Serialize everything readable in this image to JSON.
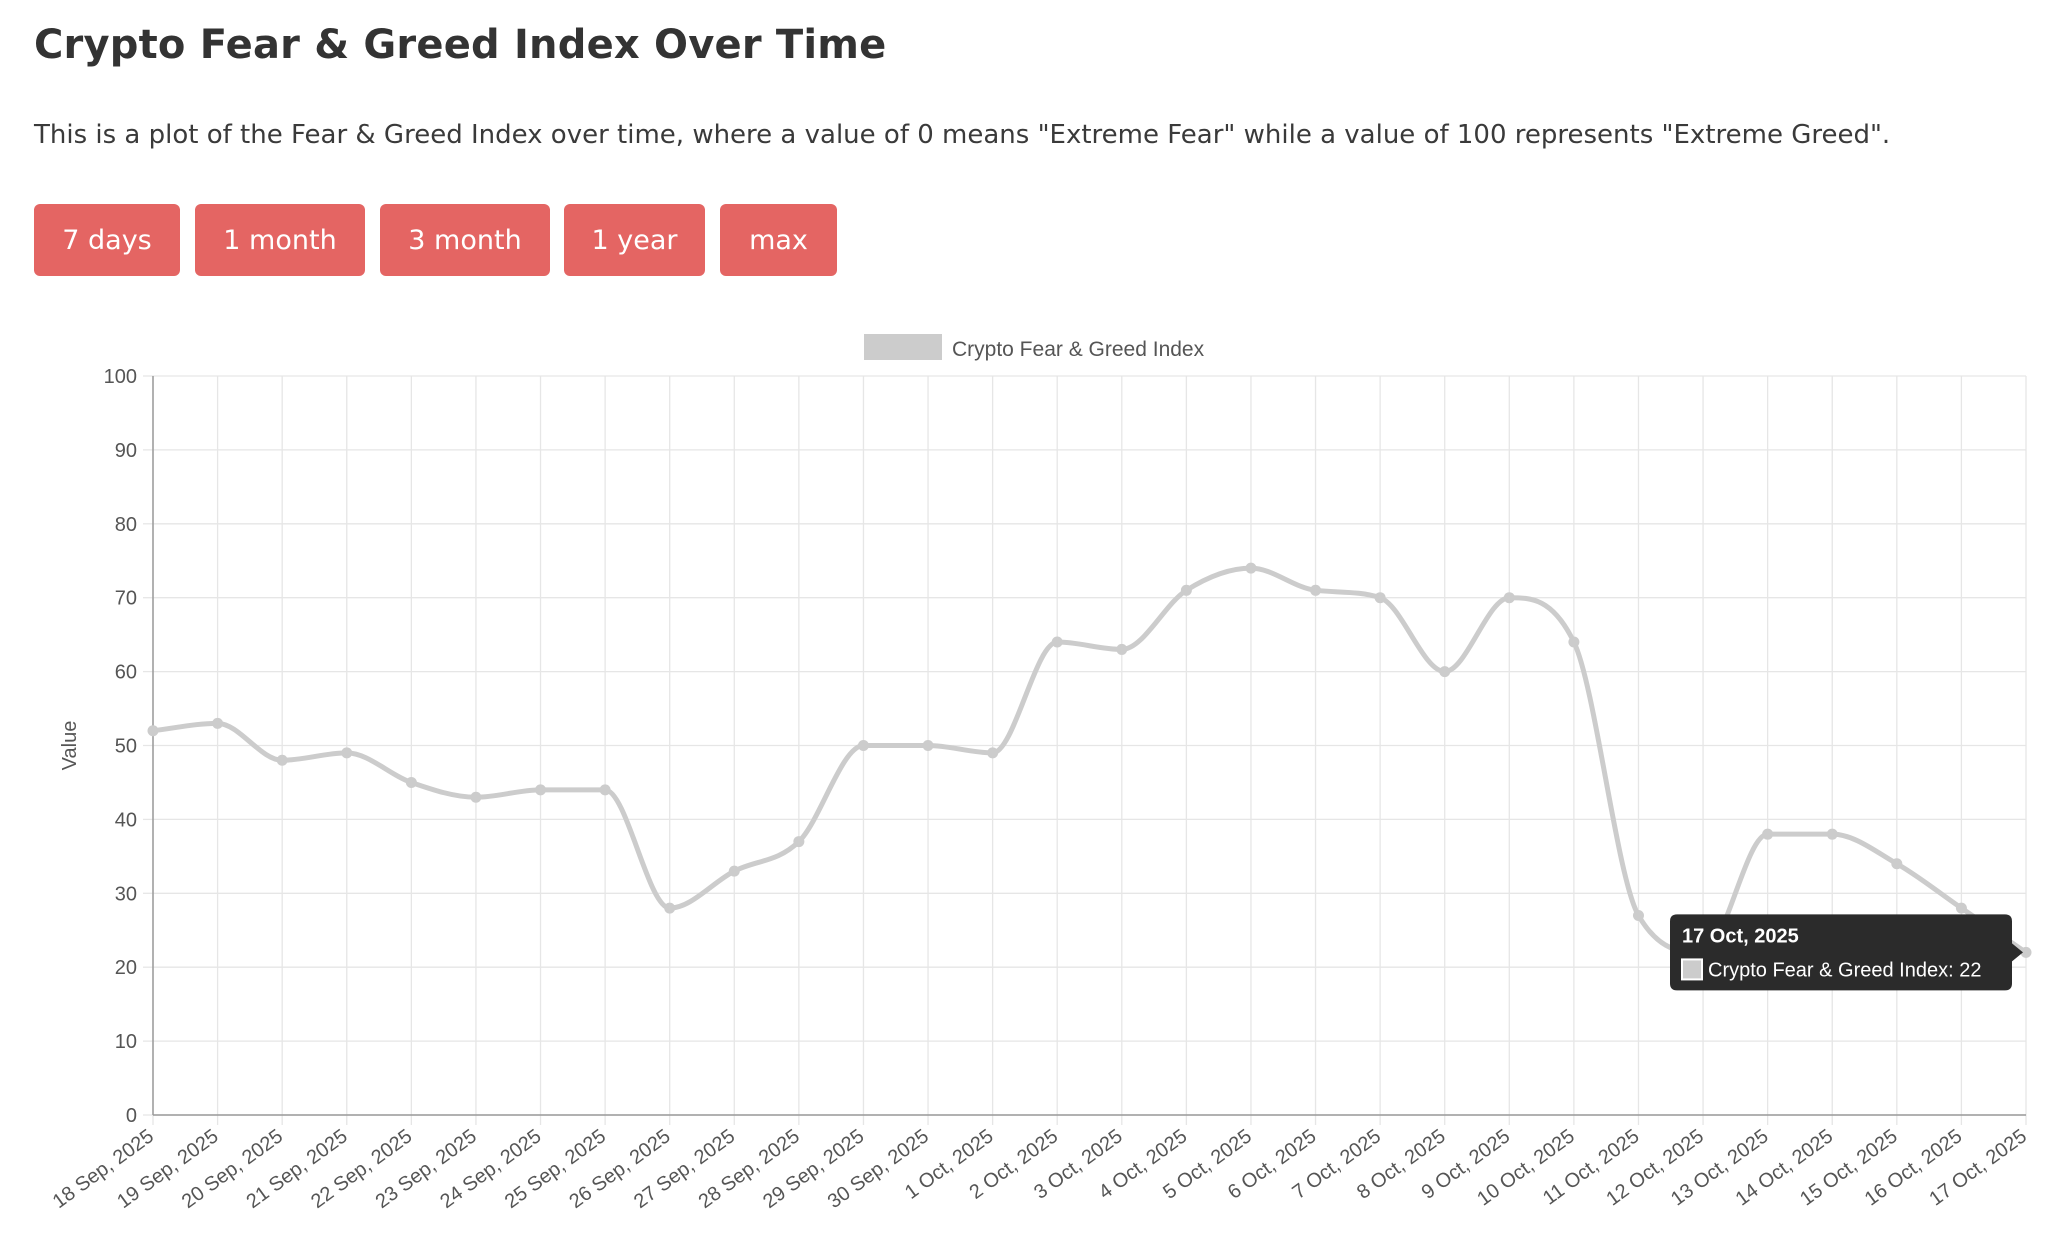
{
  "page": {
    "title": "Crypto Fear & Greed Index Over Time",
    "description": "This is a plot of the Fear & Greed Index over time, where a value of 0 means \"Extreme Fear\" while a value of 100 represents \"Extreme Greed\"."
  },
  "range_buttons": [
    {
      "label": "7 days"
    },
    {
      "label": "1 month"
    },
    {
      "label": "3 month"
    },
    {
      "label": "1 year"
    },
    {
      "label": "max"
    }
  ],
  "colors": {
    "button": "#e46563",
    "button_text": "#ffffff",
    "series": "#cccccc",
    "grid": "#e6e6e6",
    "axis": "#999999",
    "tick_text": "#555555",
    "tooltip_bg": "#2b2b2b",
    "tooltip_text": "#ffffff"
  },
  "chart_data": {
    "type": "line",
    "title": "",
    "xlabel": "",
    "ylabel": "Value",
    "ylim": [
      0,
      100
    ],
    "y_ticks": [
      0,
      10,
      20,
      30,
      40,
      50,
      60,
      70,
      80,
      90,
      100
    ],
    "grid": true,
    "legend": "top-center",
    "categories": [
      "18 Sep, 2025",
      "19 Sep, 2025",
      "20 Sep, 2025",
      "21 Sep, 2025",
      "22 Sep, 2025",
      "23 Sep, 2025",
      "24 Sep, 2025",
      "25 Sep, 2025",
      "26 Sep, 2025",
      "27 Sep, 2025",
      "28 Sep, 2025",
      "29 Sep, 2025",
      "30 Sep, 2025",
      "1 Oct, 2025",
      "2 Oct, 2025",
      "3 Oct, 2025",
      "4 Oct, 2025",
      "5 Oct, 2025",
      "6 Oct, 2025",
      "7 Oct, 2025",
      "8 Oct, 2025",
      "9 Oct, 2025",
      "10 Oct, 2025",
      "11 Oct, 2025",
      "12 Oct, 2025",
      "13 Oct, 2025",
      "14 Oct, 2025",
      "15 Oct, 2025",
      "16 Oct, 2025",
      "17 Oct, 2025"
    ],
    "series": [
      {
        "name": "Crypto Fear & Greed Index",
        "values": [
          52,
          53,
          48,
          49,
          45,
          43,
          44,
          44,
          28,
          33,
          37,
          50,
          50,
          49,
          64,
          63,
          71,
          74,
          71,
          70,
          60,
          70,
          64,
          27,
          22,
          38,
          38,
          34,
          28,
          22
        ]
      }
    ],
    "tooltip": {
      "title": "17 Oct, 2025",
      "label": "Crypto Fear & Greed Index: 22"
    }
  }
}
